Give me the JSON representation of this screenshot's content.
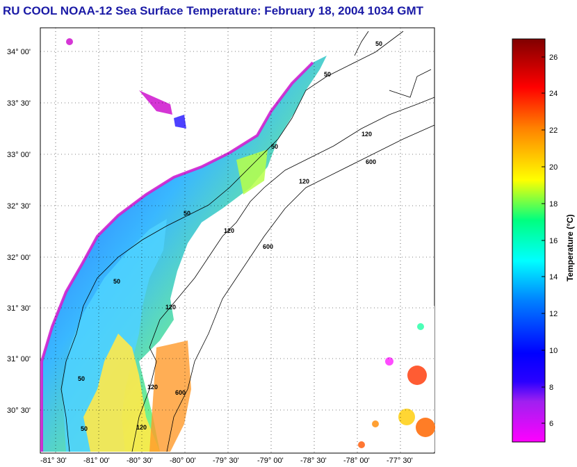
{
  "title": "RU COOL  NOAA-12  Sea Surface Temperature:  February 18, 2004 1034 GMT",
  "map": {
    "lat_labels": [
      "34° 00'",
      "33° 30'",
      "33° 00'",
      "32° 30'",
      "32° 00'",
      "31° 30'",
      "31° 00'",
      "30° 30'"
    ],
    "lon_labels": [
      "-81° 30'",
      "-81° 00'",
      "-80° 30'",
      "-80° 00'",
      "-79° 30'",
      "-79° 00'",
      "-78° 30'",
      "-78° 00'",
      "-77° 30'"
    ],
    "contour_labels": [
      "50",
      "50",
      "50",
      "120",
      "600",
      "120",
      "600",
      "50",
      "120",
      "50",
      "120",
      "600",
      "120",
      "50",
      "120",
      "50"
    ],
    "colors": {
      "land": "#ffffff",
      "grid": "#000000",
      "contour": "#000000"
    }
  },
  "colorbar": {
    "title": "Temperature (°C)",
    "ticks": [
      "6",
      "8",
      "10",
      "12",
      "14",
      "16",
      "18",
      "20",
      "22",
      "24",
      "26"
    ],
    "range": [
      5,
      27
    ],
    "colors": [
      "#ff00ff",
      "#6a0dad",
      "#0000ff",
      "#0080ff",
      "#00ffff",
      "#00ff80",
      "#ffff00",
      "#ff8000",
      "#ff0000",
      "#800000"
    ]
  }
}
